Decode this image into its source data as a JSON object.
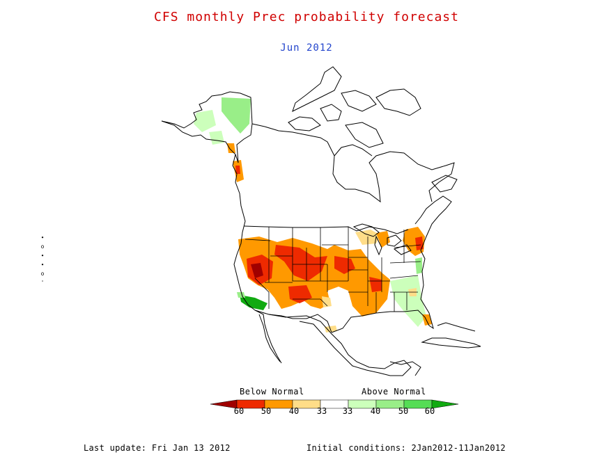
{
  "header": {
    "title": "CFS monthly Prec probability forecast",
    "subtitle": "Jun 2012"
  },
  "colors": {
    "title": "#d00000",
    "subtitle": "#2244cc",
    "land_outline": "#000000",
    "below_60": "#a00000",
    "below_50": "#ee2a00",
    "below_40": "#ff9900",
    "below_33": "#ffdd88",
    "normal": "#ffffff",
    "above_33": "#ccffbb",
    "above_40": "#99ee88",
    "above_50": "#55dd55",
    "above_60": "#11aa11"
  },
  "legend": {
    "below_label": "Below Normal",
    "above_label": "Above Normal",
    "ticks": [
      "60",
      "50",
      "40",
      "33",
      "33",
      "40",
      "50",
      "60"
    ]
  },
  "footer": {
    "last_update": "Last update: Fri Jan 13 2012",
    "initial_conditions": "Initial conditions: 2Jan2012-11Jan2012"
  },
  "side_glyph": [
    "∙",
    "o",
    "∙",
    "∙",
    "o",
    "'"
  ]
}
